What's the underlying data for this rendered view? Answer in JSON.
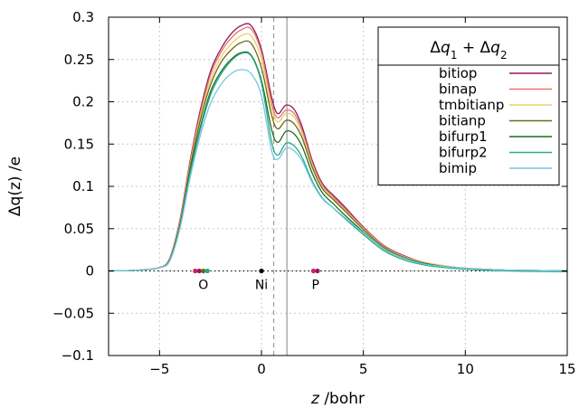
{
  "chart_data": {
    "type": "line",
    "xlabel_var": "z",
    "xlabel_unit": " /bohr",
    "ylabel": "Δq(z) /e",
    "xlim": [
      -7.5,
      15
    ],
    "ylim": [
      -0.1,
      0.3
    ],
    "xticks": [
      -5,
      0,
      5,
      10,
      15
    ],
    "xtick_labels": [
      "−5",
      "0",
      "5",
      "10",
      "15"
    ],
    "yticks": [
      -0.1,
      -0.05,
      0,
      0.05,
      0.1,
      0.15,
      0.2,
      0.25,
      0.3
    ],
    "ytick_labels": [
      "−0.1",
      "−0.05",
      "0",
      "0.05",
      "0.1",
      "0.15",
      "0.2",
      "0.25",
      "0.3"
    ],
    "grid": true,
    "legend_title": "Δq1 + Δq2",
    "legend_placement": "top-right",
    "x": [
      -7.5,
      -6,
      -5,
      -4.5,
      -4,
      -3.5,
      -3,
      -2.5,
      -2,
      -1.5,
      -1,
      -0.5,
      0,
      0.5,
      0.8,
      1.2,
      1.6,
      2,
      2.5,
      3,
      3.5,
      4,
      5,
      6,
      7,
      8,
      9,
      10,
      12,
      15
    ],
    "series": [
      {
        "name": "bitiop",
        "color": "#8e1a5e",
        "values": [
          0,
          0.001,
          0.004,
          0.015,
          0.06,
          0.13,
          0.19,
          0.236,
          0.262,
          0.28,
          0.29,
          0.29,
          0.262,
          0.205,
          0.186,
          0.196,
          0.191,
          0.17,
          0.13,
          0.103,
          0.09,
          0.078,
          0.052,
          0.03,
          0.018,
          0.01,
          0.006,
          0.003,
          0.001,
          0
        ]
      },
      {
        "name": "binap",
        "color": "#e8746e",
        "values": [
          0,
          0.001,
          0.004,
          0.014,
          0.058,
          0.127,
          0.186,
          0.232,
          0.258,
          0.275,
          0.285,
          0.286,
          0.258,
          0.198,
          0.181,
          0.19,
          0.186,
          0.166,
          0.127,
          0.101,
          0.088,
          0.076,
          0.051,
          0.029,
          0.017,
          0.01,
          0.006,
          0.003,
          0.001,
          0
        ]
      },
      {
        "name": "tmbitianp",
        "color": "#e9cf6a",
        "values": [
          0,
          0.001,
          0.004,
          0.014,
          0.057,
          0.125,
          0.182,
          0.226,
          0.252,
          0.268,
          0.278,
          0.278,
          0.25,
          0.193,
          0.176,
          0.186,
          0.182,
          0.162,
          0.125,
          0.099,
          0.086,
          0.074,
          0.05,
          0.029,
          0.017,
          0.01,
          0.006,
          0.003,
          0.001,
          0
        ]
      },
      {
        "name": "bitianp",
        "color": "#6b6a16",
        "values": [
          0,
          0.001,
          0.004,
          0.013,
          0.055,
          0.122,
          0.178,
          0.22,
          0.246,
          0.261,
          0.27,
          0.269,
          0.24,
          0.184,
          0.168,
          0.178,
          0.174,
          0.157,
          0.122,
          0.097,
          0.085,
          0.073,
          0.049,
          0.028,
          0.016,
          0.009,
          0.005,
          0.003,
          0.001,
          0
        ]
      },
      {
        "name": "bifurp1",
        "color": "#1f6b1f",
        "values": [
          0,
          0.001,
          0.004,
          0.013,
          0.054,
          0.118,
          0.17,
          0.212,
          0.235,
          0.25,
          0.258,
          0.255,
          0.225,
          0.167,
          0.152,
          0.165,
          0.162,
          0.147,
          0.115,
          0.092,
          0.08,
          0.068,
          0.046,
          0.026,
          0.015,
          0.009,
          0.005,
          0.003,
          0.001,
          0
        ]
      },
      {
        "name": "bifurp2",
        "color": "#2aa889",
        "values": [
          0,
          0.001,
          0.004,
          0.012,
          0.052,
          0.115,
          0.167,
          0.208,
          0.232,
          0.248,
          0.257,
          0.254,
          0.222,
          0.152,
          0.137,
          0.151,
          0.148,
          0.134,
          0.106,
          0.086,
          0.075,
          0.064,
          0.043,
          0.024,
          0.013,
          0.007,
          0.004,
          0.002,
          0.0,
          -0.001
        ]
      },
      {
        "name": "bimip",
        "color": "#72c7e3",
        "values": [
          0,
          0.001,
          0.004,
          0.012,
          0.05,
          0.11,
          0.16,
          0.198,
          0.22,
          0.233,
          0.238,
          0.233,
          0.207,
          0.142,
          0.132,
          0.145,
          0.142,
          0.13,
          0.104,
          0.085,
          0.075,
          0.065,
          0.045,
          0.026,
          0.015,
          0.008,
          0.005,
          0.003,
          0.001,
          0
        ]
      }
    ],
    "vlines": [
      {
        "x": 0.6,
        "style": "dashed",
        "color": "#999999"
      },
      {
        "x": 1.25,
        "style": "solid",
        "color": "#999999"
      }
    ],
    "atoms": [
      {
        "label": "O",
        "x": -2.85,
        "show_label": true,
        "dots": [
          {
            "x": -3.25,
            "color": "#d81b60"
          },
          {
            "x": -3.05,
            "color": "#8e1a5e"
          },
          {
            "x": -2.85,
            "color": "#6b6a16"
          },
          {
            "x": -2.65,
            "color": "#2aa889"
          }
        ]
      },
      {
        "label": "Ni",
        "x": 0,
        "show_label": true,
        "dots": [
          {
            "x": 0,
            "color": "#000000"
          }
        ]
      },
      {
        "label": "P",
        "x": 2.65,
        "show_label": true,
        "dots": [
          {
            "x": 2.55,
            "color": "#d81b60"
          },
          {
            "x": 2.75,
            "color": "#8e1a5e"
          }
        ]
      }
    ]
  }
}
